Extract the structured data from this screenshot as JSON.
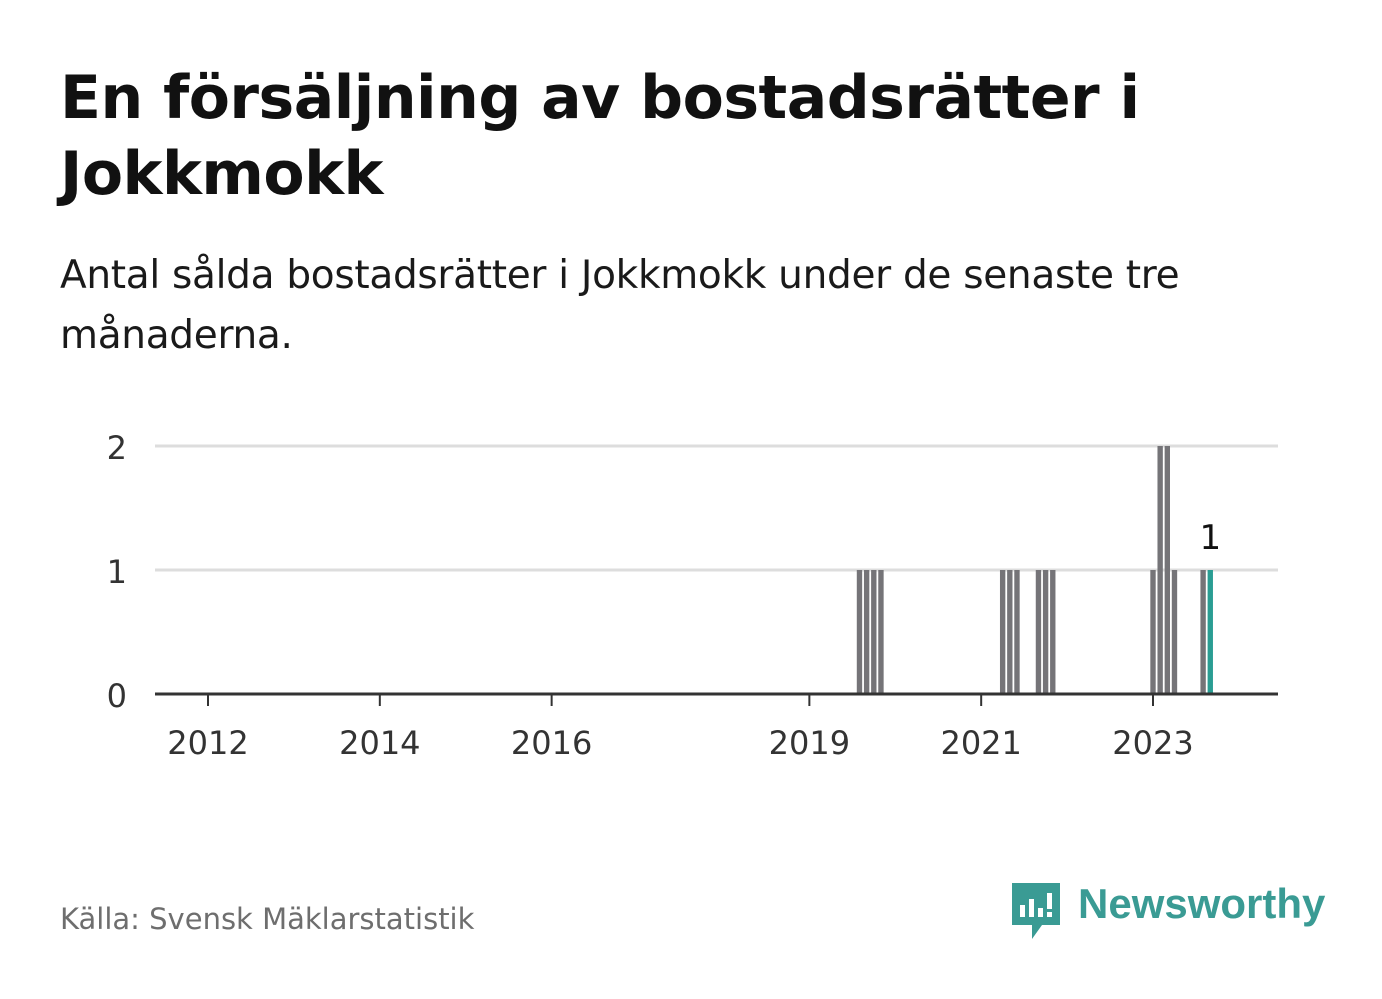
{
  "header": {
    "title": "En försäljning av bostadsrätter i Jokkmokk",
    "subtitle": "Antal sålda bostadsrätter i Jokkmokk under de senaste tre månaderna."
  },
  "footer": {
    "source": "Källa: Svensk Mäklarstatistik",
    "brand": "Newsworthy"
  },
  "colors": {
    "bar": "#757478",
    "highlight": "#2a9d93",
    "grid": "#dddddd",
    "axis": "#333333",
    "brand": "#3a9b94"
  },
  "chart_data": {
    "type": "bar",
    "title": "En försäljning av bostadsrätter i Jokkmokk",
    "subtitle": "Antal sålda bostadsrätter i Jokkmokk under de senaste tre månaderna.",
    "xlabel": "",
    "ylabel": "",
    "ylim": [
      0,
      2
    ],
    "yticks": [
      0,
      1,
      2
    ],
    "xticks": [
      "2012",
      "2014",
      "2016",
      "2019",
      "2021",
      "2023"
    ],
    "grid": true,
    "legend": "none",
    "series": [
      {
        "values": [
          {
            "period": "2019-08",
            "value": 1
          },
          {
            "period": "2019-09",
            "value": 1
          },
          {
            "period": "2019-10",
            "value": 1
          },
          {
            "period": "2019-11",
            "value": 1
          },
          {
            "period": "2021-04",
            "value": 1
          },
          {
            "period": "2021-05",
            "value": 1
          },
          {
            "period": "2021-06",
            "value": 1
          },
          {
            "period": "2021-09",
            "value": 1
          },
          {
            "period": "2021-10",
            "value": 1
          },
          {
            "period": "2021-11",
            "value": 1
          },
          {
            "period": "2023-01",
            "value": 1
          },
          {
            "period": "2023-02",
            "value": 2
          },
          {
            "period": "2023-03",
            "value": 2
          },
          {
            "period": "2023-04",
            "value": 1
          },
          {
            "period": "2023-08",
            "value": 1
          },
          {
            "period": "2023-09",
            "value": 1,
            "highlight": true
          }
        ]
      }
    ],
    "annotations": [
      {
        "period": "2023-09",
        "text": "1"
      }
    ]
  }
}
